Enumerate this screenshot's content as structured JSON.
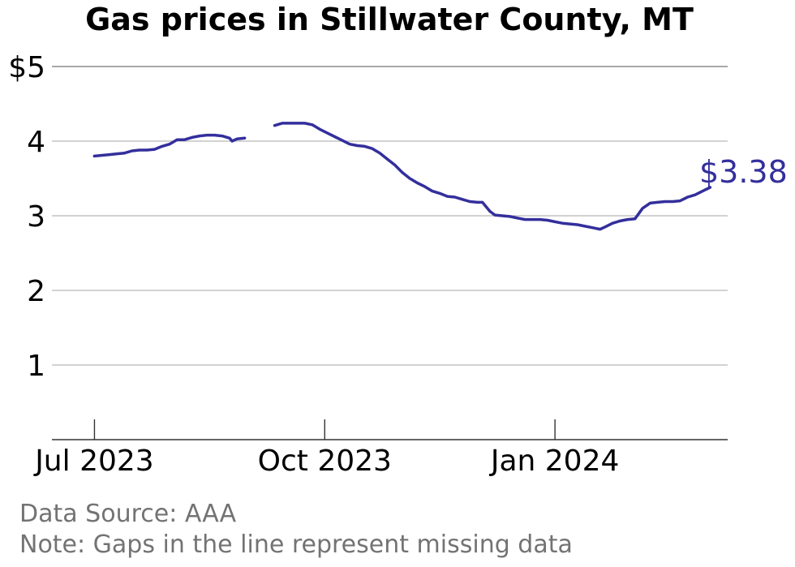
{
  "chart_data": {
    "type": "line",
    "title": "Gas prices in Stillwater County, MT",
    "y_tick_labels": [
      "$5",
      "4",
      "3",
      "2",
      "1"
    ],
    "y_ticks": [
      5,
      4,
      3,
      2,
      1
    ],
    "ylim": [
      0,
      5
    ],
    "xlim": [
      "2023-06-14",
      "2024-03-10"
    ],
    "x_tick_labels": [
      "Jul 2023",
      "Oct 2023",
      "Jan 2024"
    ],
    "x_ticks": [
      "2023-07-01",
      "2023-10-01",
      "2024-01-01"
    ],
    "grid": true,
    "line_color": "#332f9c",
    "end_label": "$3.38",
    "series": [
      {
        "segments": [
          [
            [
              "2023-07-01",
              3.8
            ],
            [
              "2023-07-04",
              3.81
            ],
            [
              "2023-07-07",
              3.82
            ],
            [
              "2023-07-10",
              3.83
            ],
            [
              "2023-07-13",
              3.84
            ],
            [
              "2023-07-16",
              3.87
            ],
            [
              "2023-07-19",
              3.88
            ],
            [
              "2023-07-22",
              3.88
            ],
            [
              "2023-07-25",
              3.89
            ],
            [
              "2023-07-28",
              3.93
            ],
            [
              "2023-07-31",
              3.96
            ],
            [
              "2023-08-03",
              4.02
            ],
            [
              "2023-08-06",
              4.02
            ],
            [
              "2023-08-09",
              4.05
            ],
            [
              "2023-08-12",
              4.07
            ],
            [
              "2023-08-15",
              4.08
            ],
            [
              "2023-08-18",
              4.08
            ],
            [
              "2023-08-21",
              4.07
            ],
            [
              "2023-08-24",
              4.04
            ],
            [
              "2023-08-25",
              4.0
            ],
            [
              "2023-08-27",
              4.03
            ],
            [
              "2023-08-30",
              4.04
            ]
          ],
          [
            [
              "2023-09-11",
              4.21
            ],
            [
              "2023-09-14",
              4.24
            ],
            [
              "2023-09-17",
              4.24
            ],
            [
              "2023-09-20",
              4.24
            ],
            [
              "2023-09-23",
              4.24
            ],
            [
              "2023-09-26",
              4.22
            ],
            [
              "2023-09-29",
              4.16
            ],
            [
              "2023-10-02",
              4.11
            ],
            [
              "2023-10-05",
              4.06
            ],
            [
              "2023-10-08",
              4.01
            ],
            [
              "2023-10-11",
              3.96
            ],
            [
              "2023-10-14",
              3.94
            ],
            [
              "2023-10-17",
              3.93
            ],
            [
              "2023-10-20",
              3.9
            ],
            [
              "2023-10-23",
              3.84
            ],
            [
              "2023-10-26",
              3.76
            ],
            [
              "2023-10-29",
              3.68
            ],
            [
              "2023-11-01",
              3.58
            ],
            [
              "2023-11-04",
              3.5
            ],
            [
              "2023-11-07",
              3.44
            ],
            [
              "2023-11-10",
              3.39
            ],
            [
              "2023-11-13",
              3.33
            ],
            [
              "2023-11-16",
              3.3
            ],
            [
              "2023-11-19",
              3.26
            ],
            [
              "2023-11-22",
              3.25
            ],
            [
              "2023-11-25",
              3.22
            ],
            [
              "2023-11-28",
              3.19
            ],
            [
              "2023-12-01",
              3.18
            ],
            [
              "2023-12-03",
              3.18
            ],
            [
              "2023-12-06",
              3.06
            ],
            [
              "2023-12-08",
              3.01
            ],
            [
              "2023-12-11",
              3.0
            ],
            [
              "2023-12-14",
              2.99
            ],
            [
              "2023-12-17",
              2.97
            ],
            [
              "2023-12-20",
              2.95
            ],
            [
              "2023-12-23",
              2.95
            ],
            [
              "2023-12-26",
              2.95
            ],
            [
              "2023-12-29",
              2.94
            ],
            [
              "2024-01-01",
              2.92
            ],
            [
              "2024-01-04",
              2.9
            ],
            [
              "2024-01-07",
              2.89
            ],
            [
              "2024-01-10",
              2.88
            ],
            [
              "2024-01-13",
              2.86
            ],
            [
              "2024-01-16",
              2.84
            ],
            [
              "2024-01-19",
              2.82
            ],
            [
              "2024-01-21",
              2.85
            ],
            [
              "2024-01-24",
              2.9
            ],
            [
              "2024-01-27",
              2.93
            ],
            [
              "2024-01-30",
              2.95
            ],
            [
              "2024-02-02",
              2.96
            ],
            [
              "2024-02-05",
              3.1
            ],
            [
              "2024-02-08",
              3.17
            ],
            [
              "2024-02-11",
              3.18
            ],
            [
              "2024-02-14",
              3.19
            ],
            [
              "2024-02-17",
              3.19
            ],
            [
              "2024-02-20",
              3.2
            ],
            [
              "2024-02-23",
              3.25
            ],
            [
              "2024-02-26",
              3.28
            ],
            [
              "2024-02-29",
              3.33
            ],
            [
              "2024-03-03",
              3.38
            ]
          ]
        ]
      }
    ]
  },
  "notes": {
    "source": "Data Source: AAA",
    "note": "Note: Gaps in the line represent missing data"
  }
}
